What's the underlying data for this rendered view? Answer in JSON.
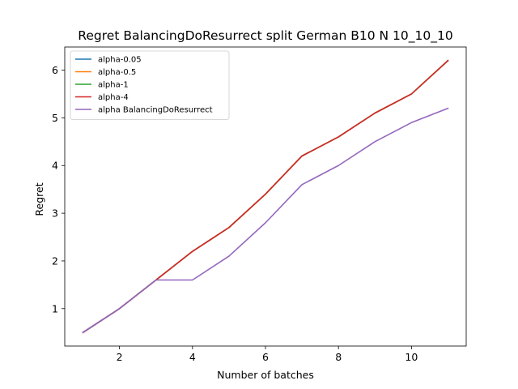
{
  "chart_data": {
    "type": "line",
    "title": "Regret BalancingDoResurrect split German B10 N 10_10_10",
    "xlabel": "Number of batches",
    "ylabel": "Regret",
    "xlim": [
      0.5,
      11.5
    ],
    "ylim": [
      0.215,
      6.485
    ],
    "xticks": [
      2,
      4,
      6,
      8,
      10
    ],
    "yticks": [
      1,
      2,
      3,
      4,
      5,
      6
    ],
    "grid": false,
    "legend_position": "top-left",
    "x": [
      1,
      2,
      3,
      4,
      5,
      6,
      7,
      8,
      9,
      10,
      11
    ],
    "series": [
      {
        "name": "alpha-0.05",
        "color": "#1f77b4",
        "values": [
          0.5,
          1.0,
          1.6,
          2.2,
          2.7,
          3.4,
          4.2,
          4.6,
          5.1,
          5.5,
          6.2
        ]
      },
      {
        "name": "alpha-0.5",
        "color": "#ff7f0e",
        "values": [
          0.5,
          1.0,
          1.6,
          2.2,
          2.7,
          3.4,
          4.2,
          4.6,
          5.1,
          5.5,
          6.2
        ]
      },
      {
        "name": "alpha-1",
        "color": "#2ca02c",
        "values": [
          0.5,
          1.0,
          1.6,
          2.2,
          2.7,
          3.4,
          4.2,
          4.6,
          5.1,
          5.5,
          6.2
        ]
      },
      {
        "name": "alpha-4",
        "color": "#d62728",
        "values": [
          0.5,
          1.0,
          1.6,
          2.2,
          2.7,
          3.4,
          4.2,
          4.6,
          5.1,
          5.5,
          6.2
        ]
      },
      {
        "name": "alpha BalancingDoResurrect",
        "color": "#9467bd",
        "values": [
          0.5,
          1.0,
          1.6,
          1.6,
          2.1,
          2.8,
          3.6,
          4.0,
          4.5,
          4.9,
          5.2
        ]
      }
    ]
  }
}
